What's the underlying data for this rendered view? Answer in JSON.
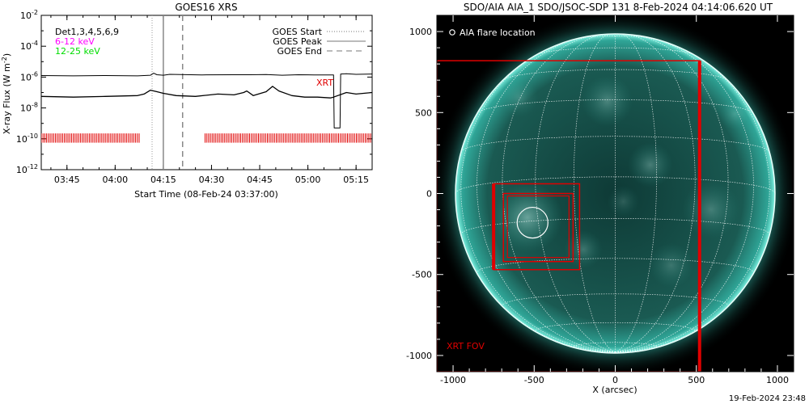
{
  "stamp": "19-Feb-2024 23:48",
  "colors": {
    "goes_long": "#000000",
    "goes_short": "#000000",
    "xrt_red": "#e00000",
    "low_band": "#ff00ff",
    "high_band": "#00ff00",
    "aia_teal": "#35c9b9"
  },
  "chart_data": [
    {
      "type": "line",
      "title": "GOES16 XRS",
      "xlabel": "Start Time (08-Feb-24 03:37:00)",
      "ylabel": "X-ray Flux (W m^-2)",
      "log_y": true,
      "x_minutes_since_0337": {
        "min": 0,
        "max": 103
      },
      "y_exponent_range": [
        -12,
        -2
      ],
      "x_ticks": [
        {
          "label": "03:45",
          "t": 8
        },
        {
          "label": "04:00",
          "t": 23
        },
        {
          "label": "04:15",
          "t": 38
        },
        {
          "label": "04:30",
          "t": 53
        },
        {
          "label": "04:45",
          "t": 68
        },
        {
          "label": "05:00",
          "t": 83
        },
        {
          "label": "05:15",
          "t": 98
        }
      ],
      "y_ticks": [
        {
          "label": "10^-2",
          "base": "10",
          "exp": "-2",
          "value": -2
        },
        {
          "label": "10^-4",
          "base": "10",
          "exp": "-4",
          "value": -4
        },
        {
          "label": "10^-6",
          "base": "10",
          "exp": "-6",
          "value": -6
        },
        {
          "label": "10^-8",
          "base": "10",
          "exp": "-8",
          "value": -8
        },
        {
          "label": "10^-10",
          "base": "10",
          "exp": "-10",
          "value": -10
        },
        {
          "label": "10^-12",
          "base": "10",
          "exp": "-12",
          "value": -12
        }
      ],
      "legend_left": {
        "dets": "Det1,3,4,5,6,9",
        "low": "6-12 keV",
        "high": "12-25 keV"
      },
      "legend_right": [
        {
          "label": "GOES Start",
          "style": "dotted"
        },
        {
          "label": "GOES Peak",
          "style": "solid"
        },
        {
          "label": "GOES End",
          "style": "dashed"
        }
      ],
      "event_lines": {
        "start": 34.5,
        "peak": 38.0,
        "end": 44.0
      },
      "xrt_label": "XRT",
      "series": [
        {
          "name": "12-25 keV",
          "x": [
            0,
            10,
            20,
            30,
            34,
            35,
            36,
            38,
            40,
            50,
            60,
            65,
            70,
            75,
            80,
            85,
            90,
            91,
            91.2,
            93,
            93.2,
            95,
            98,
            103
          ],
          "y": [
            -5.9,
            -5.92,
            -5.9,
            -5.92,
            -5.88,
            -5.75,
            -5.85,
            -5.88,
            -5.82,
            -5.86,
            -5.85,
            -5.85,
            -5.83,
            -5.88,
            -5.85,
            -5.86,
            -5.86,
            -5.86,
            -9.3,
            -9.3,
            -5.8,
            -5.78,
            -5.82,
            -5.8
          ]
        },
        {
          "name": "6-12 keV",
          "x": [
            0,
            10,
            20,
            30,
            32,
            34,
            36,
            38,
            42,
            48,
            55,
            60,
            63,
            64,
            66,
            70,
            72,
            74,
            78,
            82,
            86,
            90,
            91,
            95,
            98,
            103
          ],
          "y": [
            -7.25,
            -7.3,
            -7.25,
            -7.2,
            -7.1,
            -6.85,
            -6.95,
            -7.05,
            -7.2,
            -7.25,
            -7.1,
            -7.15,
            -7.0,
            -6.9,
            -7.2,
            -6.95,
            -6.6,
            -6.9,
            -7.2,
            -7.3,
            -7.3,
            -7.35,
            -7.3,
            -7.0,
            -7.1,
            -7.0
          ]
        }
      ],
      "xrt_coverage": [
        {
          "from": 0,
          "to": 31
        },
        {
          "from": 51,
          "to": 103
        }
      ]
    },
    {
      "type": "image",
      "title": "SDO/AIA AIA_1 SDO/JSOC-SDP 131  8-Feb-2024 04:14:06.620 UT",
      "xlabel": "X (arcsec)",
      "xlim": [
        -1100,
        1100
      ],
      "ylim": [
        -1100,
        1100
      ],
      "x_ticks": [
        "-1000",
        "-500",
        "0",
        "500",
        "1000"
      ],
      "y_ticks": [
        "1000",
        "500",
        "0",
        "-500",
        "-1000"
      ],
      "legend": "AIA flare location",
      "flare_circle": {
        "cx": -510,
        "cy": -180,
        "r": 95
      },
      "xrt_fov_label": "XRT FOV",
      "solar_radius_arcsec": 985,
      "boxes": [
        {
          "x0": -1100,
          "x1": 520,
          "y0": -1100,
          "y1": 820,
          "width": 1.5
        },
        {
          "x0": -750,
          "x1": -220,
          "y0": -470,
          "y1": 60,
          "width": 1.5
        },
        {
          "x0": -690,
          "x1": -260,
          "y0": -420,
          "y1": 0,
          "width": 1.5
        },
        {
          "x0": -665,
          "x1": -285,
          "y0": -395,
          "y1": -15,
          "width": 1.2
        }
      ],
      "thick_edges": [
        {
          "x": -750,
          "y0": -470,
          "y1": 60
        },
        {
          "x": 520,
          "y0": -1100,
          "y1": 820
        }
      ]
    }
  ]
}
